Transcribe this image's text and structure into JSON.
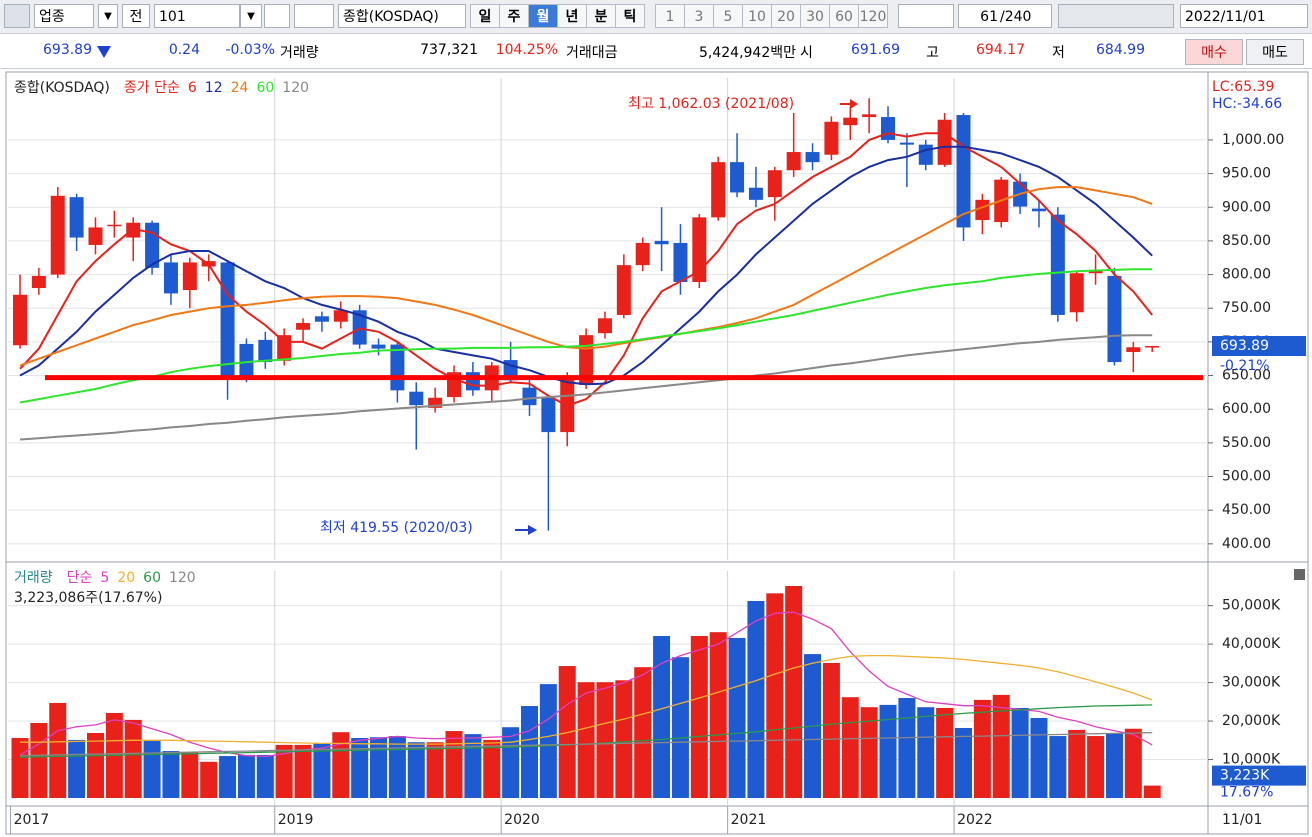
{
  "toolbar": {
    "market": "업종",
    "mode": "전",
    "code": "101",
    "name": "종합(KOSDAQ)",
    "periods": [
      "일",
      "주",
      "월",
      "년",
      "분",
      "틱"
    ],
    "minutes": [
      "1",
      "3",
      "5",
      "10",
      "20",
      "30",
      "60",
      "120"
    ],
    "count": "61",
    "total": "/240",
    "date": "2022/11/01"
  },
  "info_bar": {
    "price": "693.89",
    "change": "0.24",
    "change_rate": "-0.03%",
    "volume_label": "거래량",
    "volume": "737,321",
    "volume_rate": "104.25%",
    "amount_label": "거래대금",
    "amount": "5,424,942백만",
    "open_label": "시",
    "open": "691.69",
    "high_label": "고",
    "high": "694.17",
    "low_label": "저",
    "low": "684.99",
    "buy": "매수",
    "sell": "매도"
  },
  "chart_data": [
    {
      "type": "candlestick",
      "title": "종합(KOSDAQ)",
      "legend_prefix": "종가 단순",
      "up_color": "#e8211a",
      "down_color": "#1f5bd0",
      "open": [
        695,
        780,
        800,
        915,
        844,
        872,
        855,
        877,
        818,
        777,
        812,
        818,
        697,
        703,
        672,
        718,
        738,
        730,
        747,
        696,
        696,
        626,
        602,
        618,
        655,
        628,
        673,
        632,
        617,
        566,
        636,
        713,
        740,
        814,
        850,
        847,
        789,
        885,
        967,
        929,
        915,
        955,
        982,
        978,
        1022,
        1034,
        1034,
        996,
        993,
        963,
        1037,
        881,
        878,
        938,
        898,
        889,
        744,
        802,
        798,
        685,
        691.69
      ],
      "high": [
        800,
        810,
        930,
        920,
        885,
        895,
        885,
        880,
        830,
        825,
        830,
        820,
        705,
        715,
        720,
        735,
        745,
        760,
        755,
        705,
        700,
        640,
        632,
        665,
        670,
        670,
        700,
        650,
        620,
        655,
        720,
        745,
        830,
        855,
        900,
        875,
        890,
        975,
        1010,
        960,
        960,
        1040,
        995,
        1035,
        1050,
        1062.03,
        1050,
        1010,
        1000,
        1040,
        1040,
        920,
        945,
        950,
        910,
        900,
        805,
        830,
        810,
        700,
        694.17
      ],
      "low": [
        690,
        770,
        795,
        835,
        830,
        855,
        820,
        800,
        755,
        750,
        790,
        614,
        640,
        660,
        665,
        700,
        715,
        720,
        690,
        680,
        610,
        540,
        595,
        610,
        620,
        610,
        640,
        590,
        419.55,
        545,
        630,
        705,
        735,
        805,
        805,
        770,
        780,
        880,
        915,
        900,
        880,
        945,
        955,
        970,
        1000,
        1010,
        995,
        930,
        955,
        960,
        850,
        860,
        870,
        890,
        870,
        730,
        730,
        785,
        665,
        655,
        684.99
      ],
      "close": [
        770,
        798,
        917,
        855,
        870,
        874,
        877,
        810,
        772,
        818,
        820,
        647,
        650,
        670,
        710,
        728,
        730,
        747,
        696,
        690,
        628,
        606,
        617,
        655,
        628,
        665,
        643,
        606,
        566,
        647,
        710,
        735,
        814,
        847,
        845,
        789,
        885,
        967,
        922,
        911,
        955,
        982,
        967,
        1027,
        1033,
        1038,
        1000,
        993,
        963,
        1030,
        870,
        911,
        941,
        901,
        894,
        740,
        802,
        806,
        670,
        692,
        693.89
      ],
      "series": [
        {
          "name": "6",
          "color": "#e8211a",
          "values": [
            660,
            690,
            740,
            790,
            820,
            845,
            868,
            862,
            845,
            835,
            815,
            770,
            745,
            725,
            700,
            700,
            690,
            705,
            720,
            715,
            700,
            680,
            660,
            645,
            635,
            635,
            640,
            638,
            620,
            605,
            615,
            640,
            680,
            735,
            775,
            790,
            805,
            835,
            875,
            895,
            905,
            925,
            945,
            960,
            975,
            1000,
            1010,
            1005,
            1010,
            1010,
            990,
            975,
            960,
            935,
            910,
            880,
            860,
            835,
            800,
            775,
            740
          ]
        },
        {
          "name": "12",
          "color": "#1a2fa0",
          "values": [
            650,
            665,
            690,
            715,
            745,
            770,
            795,
            815,
            830,
            835,
            835,
            820,
            805,
            790,
            780,
            765,
            755,
            748,
            740,
            730,
            715,
            705,
            690,
            685,
            680,
            675,
            665,
            658,
            648,
            640,
            637,
            638,
            650,
            670,
            695,
            720,
            745,
            775,
            800,
            830,
            855,
            880,
            905,
            925,
            945,
            960,
            970,
            975,
            985,
            990,
            990,
            985,
            980,
            970,
            960,
            945,
            925,
            905,
            880,
            855,
            828
          ]
        },
        {
          "name": "24",
          "color": "#f07818",
          "values": [
            665,
            675,
            685,
            695,
            705,
            715,
            725,
            732,
            740,
            745,
            750,
            753,
            755,
            758,
            762,
            765,
            767,
            768,
            768,
            767,
            765,
            760,
            755,
            748,
            740,
            730,
            720,
            710,
            700,
            692,
            690,
            693,
            698,
            703,
            707,
            712,
            717,
            722,
            728,
            735,
            745,
            755,
            770,
            785,
            800,
            815,
            830,
            845,
            860,
            875,
            890,
            900,
            910,
            920,
            927,
            930,
            930,
            925,
            920,
            915,
            905
          ]
        },
        {
          "name": "60",
          "color": "#2ee62e",
          "values": [
            610,
            615,
            620,
            625,
            630,
            637,
            643,
            648,
            655,
            660,
            664,
            667,
            670,
            672,
            674,
            676,
            679,
            682,
            684,
            687,
            688,
            689,
            690,
            690,
            691,
            691,
            691,
            692,
            692,
            693,
            694,
            697,
            700,
            704,
            708,
            712,
            716,
            720,
            725,
            730,
            735,
            740,
            746,
            752,
            758,
            764,
            770,
            775,
            780,
            784,
            787,
            790,
            795,
            798,
            801,
            803,
            805,
            806,
            807,
            808,
            808
          ]
        },
        {
          "name": "120",
          "color": "#888888",
          "values": [
            555,
            557,
            559,
            561,
            563,
            565,
            568,
            570,
            573,
            575,
            578,
            580,
            583,
            585,
            588,
            590,
            592,
            594,
            597,
            599,
            601,
            603,
            605,
            607,
            609,
            611,
            613,
            616,
            618,
            620,
            622,
            625,
            628,
            631,
            634,
            637,
            640,
            643,
            646,
            650,
            653,
            657,
            661,
            665,
            668,
            672,
            676,
            680,
            683,
            686,
            689,
            692,
            695,
            698,
            700,
            703,
            705,
            707,
            709,
            710,
            710
          ]
        }
      ],
      "hline": {
        "value": 647,
        "color": "#ff0000"
      },
      "annotations": [
        {
          "text": "최고 1,062.03 (2021/08)",
          "color": "#e8211a"
        },
        {
          "text": "최저 419.55 (2020/03)",
          "color": "#1f3fd0"
        }
      ],
      "lc_label": "LC:65.39",
      "hc_label": "HC:-34.66",
      "last_change_label": "-0.21%",
      "ylim": [
        376,
        1092
      ],
      "yticks": [
        {
          "value": 400,
          "label": "400.00"
        },
        {
          "value": 450,
          "label": "450.00"
        },
        {
          "value": 500,
          "label": "500.00"
        },
        {
          "value": 550,
          "label": "550.00"
        },
        {
          "value": 600,
          "label": "600.00"
        },
        {
          "value": 650,
          "label": "650.00"
        },
        {
          "value": 700,
          "label": "700.00"
        },
        {
          "value": 750,
          "label": "750.00"
        },
        {
          "value": 800,
          "label": "800.00"
        },
        {
          "value": 850,
          "label": "850.00"
        },
        {
          "value": 900,
          "label": "900.00"
        },
        {
          "value": 950,
          "label": "950.00"
        },
        {
          "value": 1000,
          "label": "1,000.00"
        }
      ],
      "grid": true
    },
    {
      "type": "bar",
      "title": "거래량",
      "legend_prefix": "단순",
      "title_color": "#2a8a8a",
      "summary": "3,223,086주(17.67%)",
      "categories": [
        "2017",
        null,
        null,
        null,
        null,
        null,
        null,
        null,
        null,
        null,
        null,
        null,
        null,
        null,
        "2019",
        null,
        null,
        null,
        null,
        null,
        null,
        null,
        null,
        null,
        null,
        null,
        "2020",
        null,
        null,
        null,
        null,
        null,
        null,
        null,
        null,
        null,
        null,
        null,
        "2021",
        null,
        null,
        null,
        null,
        null,
        null,
        null,
        null,
        null,
        null,
        null,
        "2022",
        null,
        null,
        null,
        null,
        null,
        null,
        null,
        null,
        null,
        null
      ],
      "end_label": "11/01",
      "values": [
        15600,
        19500,
        24700,
        15100,
        16900,
        22100,
        20300,
        15100,
        12200,
        12000,
        9400,
        10900,
        11200,
        11200,
        13800,
        13800,
        14300,
        17100,
        15600,
        15800,
        16100,
        14500,
        14500,
        17400,
        16600,
        15100,
        18400,
        23900,
        29600,
        34300,
        30100,
        30100,
        30600,
        34000,
        42100,
        36600,
        42100,
        43100,
        41600,
        51200,
        53200,
        55100,
        37400,
        35100,
        26200,
        23600,
        24200,
        26000,
        23600,
        23400,
        18200,
        25500,
        26800,
        23400,
        20800,
        16100,
        17700,
        16100,
        16900,
        18000,
        3223
      ],
      "series": [
        {
          "name": "5",
          "color": "#e040c0",
          "values": [
            11200,
            14000,
            17500,
            18500,
            19000,
            20300,
            19500,
            18000,
            16500,
            14500,
            13000,
            11800,
            11000,
            10800,
            11500,
            12500,
            13000,
            14000,
            15000,
            15500,
            16000,
            15600,
            15400,
            15500,
            15600,
            15800,
            16000,
            17500,
            20500,
            24300,
            27300,
            28500,
            30000,
            32000,
            35000,
            37000,
            38500,
            40000,
            43000,
            46000,
            48000,
            48300,
            46500,
            44000,
            38000,
            33000,
            29000,
            27000,
            25000,
            24500,
            24000,
            24000,
            23500,
            23000,
            22500,
            21000,
            20000,
            18500,
            17500,
            16500,
            13800
          ]
        },
        {
          "name": "20",
          "color": "#f0b030",
          "values": [
            14500,
            14500,
            14600,
            14700,
            14800,
            14900,
            15000,
            15000,
            15000,
            14900,
            14800,
            14700,
            14600,
            14500,
            14400,
            14300,
            14200,
            14200,
            14100,
            14100,
            14000,
            14000,
            14000,
            14100,
            14200,
            14300,
            14500,
            15200,
            16000,
            17000,
            18200,
            19400,
            20500,
            21800,
            23200,
            24600,
            26000,
            27500,
            29000,
            30500,
            32200,
            33800,
            35000,
            36000,
            36800,
            37000,
            37000,
            36800,
            36600,
            36400,
            36000,
            35500,
            35000,
            34500,
            33800,
            32800,
            31500,
            30200,
            28800,
            27300,
            25500
          ]
        },
        {
          "name": "60",
          "color": "#2a9a4a",
          "values": [
            10600,
            10700,
            10800,
            10900,
            11000,
            11100,
            11200,
            11300,
            11400,
            11500,
            11600,
            11700,
            11800,
            11900,
            12000,
            12100,
            12200,
            12300,
            12400,
            12500,
            12600,
            12700,
            12800,
            12900,
            13000,
            13100,
            13200,
            13400,
            13600,
            13800,
            14000,
            14300,
            14600,
            14900,
            15200,
            15600,
            16000,
            16400,
            16800,
            17200,
            17700,
            18200,
            18700,
            19200,
            19600,
            20000,
            20400,
            20800,
            21200,
            21600,
            22000,
            22300,
            22600,
            22900,
            23200,
            23500,
            23700,
            23900,
            24000,
            24100,
            24200
          ]
        },
        {
          "name": "120",
          "color": "#888888",
          "values": [
            11000,
            11100,
            11200,
            11300,
            11400,
            11500,
            11600,
            11700,
            11800,
            11900,
            12000,
            12100,
            12200,
            12300,
            12400,
            12500,
            12600,
            12700,
            12800,
            12900,
            13000,
            13100,
            13200,
            13300,
            13400,
            13500,
            13600,
            13700,
            13800,
            13900,
            14000,
            14100,
            14200,
            14300,
            14400,
            14500,
            14600,
            14700,
            14800,
            14900,
            15000,
            15100,
            15200,
            15300,
            15400,
            15500,
            15600,
            15700,
            15800,
            15900,
            16000,
            16100,
            16200,
            16300,
            16400,
            16500,
            16600,
            16700,
            16800,
            16900,
            17000
          ]
        }
      ],
      "last_value_label": "3,223K",
      "last_ratio_label": "17.67%",
      "ylim": [
        0,
        59000
      ],
      "yticks": [
        {
          "value": 10000,
          "label": "10,000K"
        },
        {
          "value": 20000,
          "label": "20,000K"
        },
        {
          "value": 30000,
          "label": "30,000K"
        },
        {
          "value": 40000,
          "label": "40,000K"
        },
        {
          "value": 50000,
          "label": "50,000K"
        }
      ],
      "grid": true
    }
  ]
}
